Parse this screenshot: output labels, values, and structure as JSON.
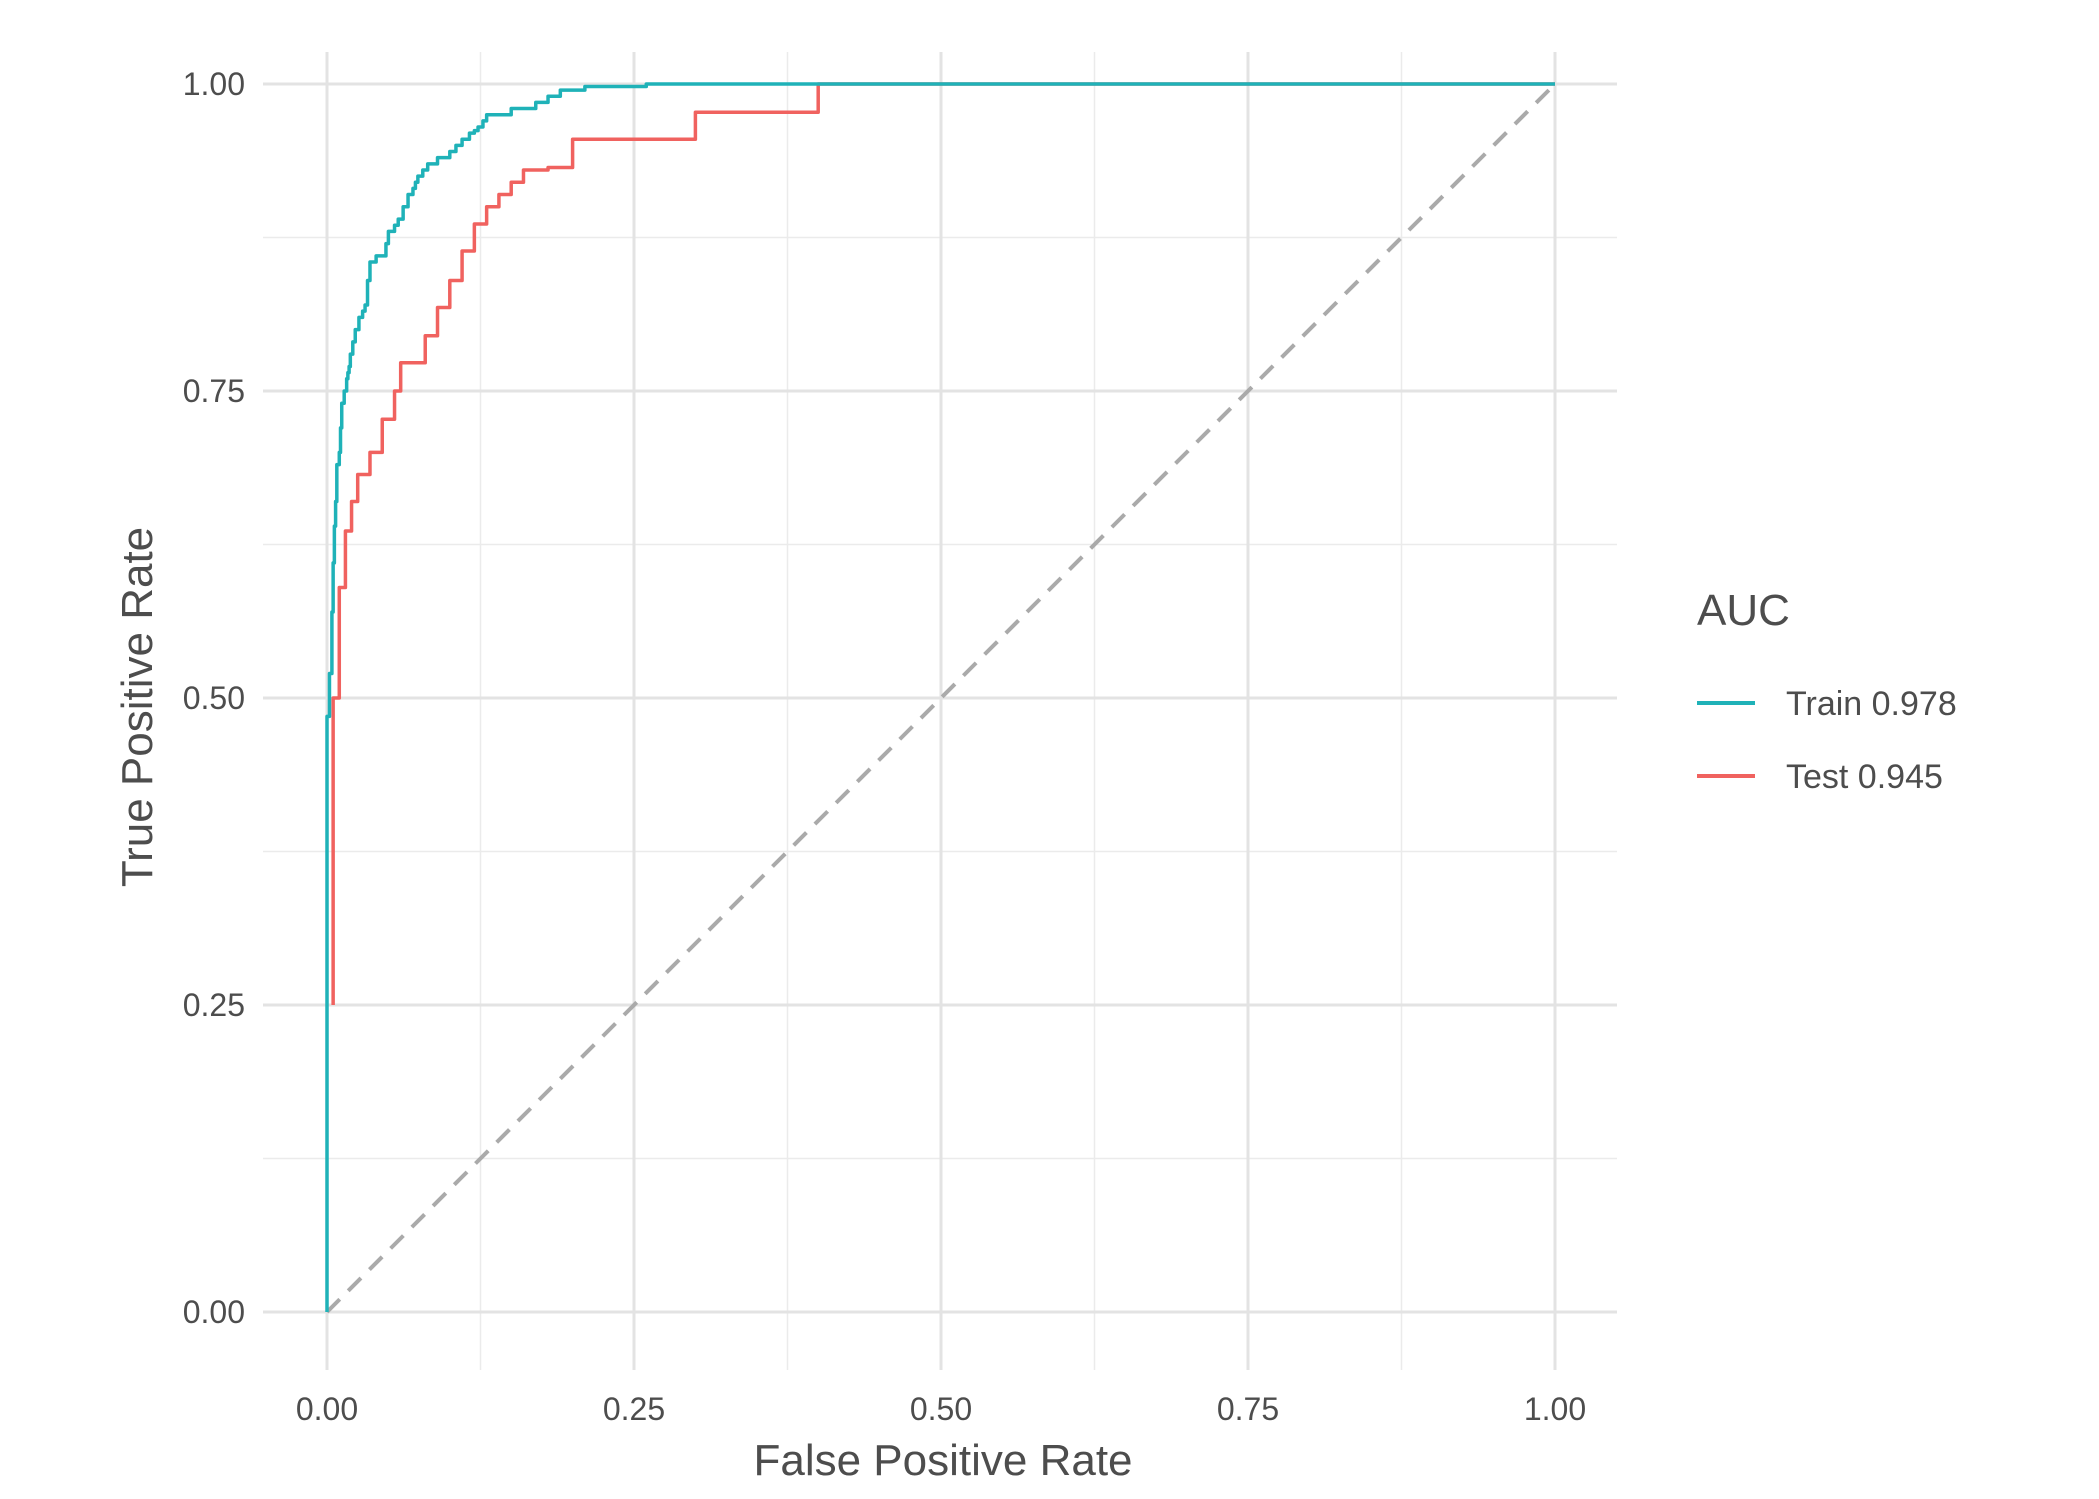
{
  "chart_data": {
    "type": "line",
    "title": "",
    "xlabel": "False Positive Rate",
    "ylabel": "True Positive Rate",
    "xlim": [
      0,
      1
    ],
    "ylim": [
      0,
      1
    ],
    "xticks": [
      "0.00",
      "0.25",
      "0.50",
      "0.75",
      "1.00"
    ],
    "yticks": [
      "0.00",
      "0.25",
      "0.50",
      "0.75",
      "1.00"
    ],
    "grid": true,
    "legend": {
      "title": "AUC",
      "position": "right"
    },
    "reference_line": {
      "style": "dashed",
      "color": "#aaaaaa",
      "x": [
        0,
        1
      ],
      "y": [
        0,
        1
      ]
    },
    "series": [
      {
        "name": "Train 0.978",
        "color": "#1fb2b8",
        "step": true,
        "x": [
          0,
          0,
          0.002,
          0.004,
          0.005,
          0.006,
          0.007,
          0.008,
          0.01,
          0.011,
          0.012,
          0.014,
          0.016,
          0.017,
          0.018,
          0.019,
          0.021,
          0.023,
          0.026,
          0.029,
          0.031,
          0.033,
          0.035,
          0.04,
          0.048,
          0.05,
          0.055,
          0.058,
          0.062,
          0.066,
          0.07,
          0.072,
          0.074,
          0.078,
          0.082,
          0.09,
          0.1,
          0.105,
          0.11,
          0.116,
          0.12,
          0.123,
          0.127,
          0.13,
          0.15,
          0.17,
          0.18,
          0.19,
          0.21,
          0.26,
          0.3,
          0.35,
          0.5,
          0.75,
          1.0
        ],
        "y": [
          0,
          0.48,
          0.485,
          0.52,
          0.57,
          0.61,
          0.64,
          0.66,
          0.69,
          0.7,
          0.72,
          0.74,
          0.75,
          0.76,
          0.765,
          0.77,
          0.78,
          0.79,
          0.8,
          0.81,
          0.815,
          0.82,
          0.84,
          0.855,
          0.86,
          0.87,
          0.88,
          0.885,
          0.89,
          0.9,
          0.91,
          0.915,
          0.92,
          0.925,
          0.93,
          0.935,
          0.94,
          0.945,
          0.95,
          0.955,
          0.96,
          0.962,
          0.965,
          0.97,
          0.975,
          0.98,
          0.985,
          0.99,
          0.995,
          0.998,
          1.0,
          1.0,
          1.0,
          1.0,
          1.0
        ]
      },
      {
        "name": "Test 0.945",
        "color": "#f0625f",
        "step": true,
        "x": [
          0.005,
          0.005,
          0.01,
          0.015,
          0.02,
          0.025,
          0.035,
          0.045,
          0.055,
          0.06,
          0.08,
          0.09,
          0.1,
          0.11,
          0.12,
          0.13,
          0.14,
          0.15,
          0.16,
          0.18,
          0.2,
          0.21,
          0.22,
          0.3,
          0.4,
          0.43,
          0.5,
          0.75,
          1.0
        ],
        "y": [
          0.25,
          0.455,
          0.5,
          0.59,
          0.636,
          0.66,
          0.682,
          0.7,
          0.727,
          0.75,
          0.773,
          0.795,
          0.818,
          0.84,
          0.864,
          0.886,
          0.9,
          0.91,
          0.92,
          0.93,
          0.932,
          0.955,
          0.955,
          0.955,
          0.977,
          1.0,
          1.0,
          1.0,
          1.0
        ]
      }
    ]
  }
}
